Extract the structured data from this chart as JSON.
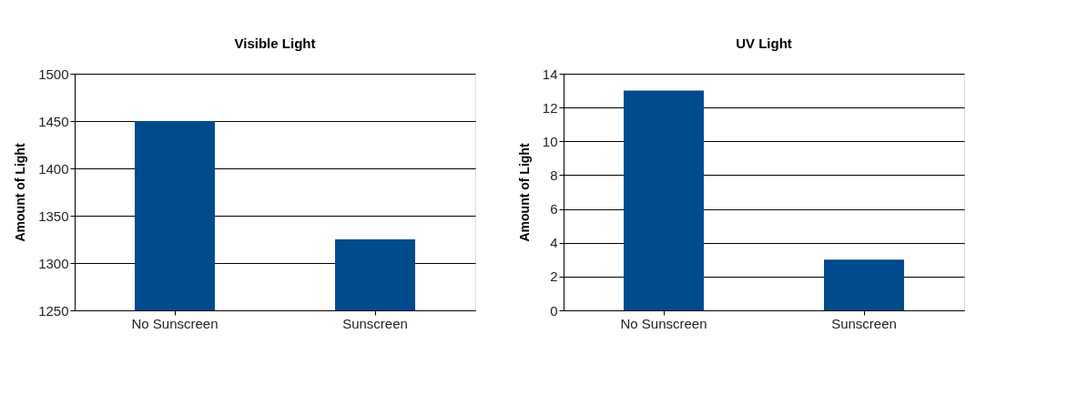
{
  "chart_data": [
    {
      "type": "bar",
      "title": "Visible Light",
      "ylabel": "Amount of Light",
      "categories": [
        "No Sunscreen",
        "Sunscreen"
      ],
      "values": [
        1450,
        1325
      ],
      "color": "#004b8d",
      "ylim": [
        1250,
        1500
      ],
      "yticks": [
        1250,
        1300,
        1350,
        1400,
        1450,
        1500
      ],
      "grid": "y"
    },
    {
      "type": "bar",
      "title": "UV Light",
      "ylabel": "Amount of Light",
      "categories": [
        "No Sunscreen",
        "Sunscreen"
      ],
      "values": [
        13,
        3
      ],
      "color": "#004b8d",
      "ylim": [
        0,
        14
      ],
      "yticks": [
        0,
        2,
        4,
        6,
        8,
        10,
        12,
        14
      ],
      "grid": "y"
    }
  ]
}
